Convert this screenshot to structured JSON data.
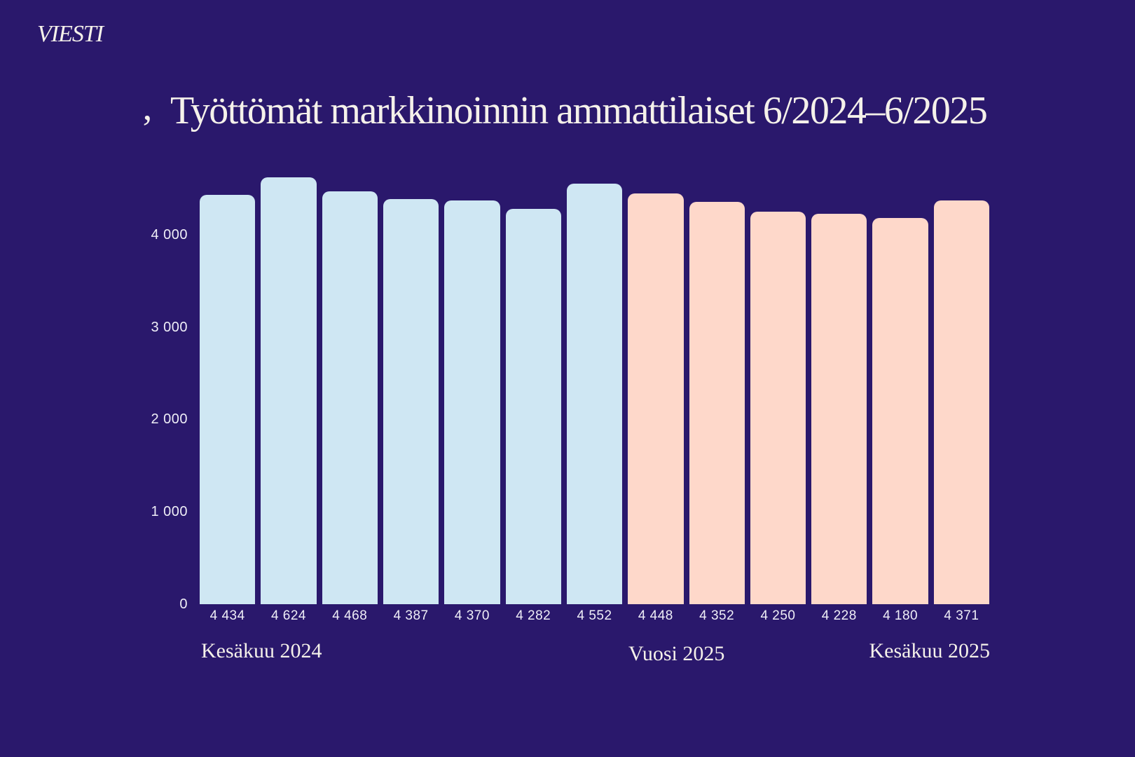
{
  "brand": {
    "logo_text": "VIESTI"
  },
  "decor": {
    "apostrophe": "’"
  },
  "title": {
    "text": "Työttömät markkinoinnin ammattilaiset 6/2024–6/2025"
  },
  "colors": {
    "background": "#2a186c",
    "bar_2024": "#cfe7f3",
    "bar_2025": "#fed8ca",
    "serif_text": "#f5f1ea",
    "sans_text": "#efeef7"
  },
  "y_axis": {
    "ticks": [
      {
        "label": "0",
        "value": 0
      },
      {
        "label": "1 000",
        "value": 1000
      },
      {
        "label": "2 000",
        "value": 2000
      },
      {
        "label": "3 000",
        "value": 3000
      },
      {
        "label": "4 000",
        "value": 4000
      }
    ]
  },
  "bars": [
    {
      "label": "4 434",
      "value": 4434,
      "series": "2024"
    },
    {
      "label": "4 624",
      "value": 4624,
      "series": "2024"
    },
    {
      "label": "4 468",
      "value": 4468,
      "series": "2024"
    },
    {
      "label": "4 387",
      "value": 4387,
      "series": "2024"
    },
    {
      "label": "4 370",
      "value": 4370,
      "series": "2024"
    },
    {
      "label": "4 282",
      "value": 4282,
      "series": "2024"
    },
    {
      "label": "4 552",
      "value": 4552,
      "series": "2024"
    },
    {
      "label": "4 448",
      "value": 4448,
      "series": "2025"
    },
    {
      "label": "4 352",
      "value": 4352,
      "series": "2025"
    },
    {
      "label": "4 250",
      "value": 4250,
      "series": "2025"
    },
    {
      "label": "4 228",
      "value": 4228,
      "series": "2025"
    },
    {
      "label": "4 180",
      "value": 4180,
      "series": "2025"
    },
    {
      "label": "4 371",
      "value": 4371,
      "series": "2025"
    }
  ],
  "annotations": {
    "left": "Kesäkuu 2024",
    "middle": "Vuosi 2025",
    "right": "Kesäkuu 2025"
  },
  "chart_data": {
    "type": "bar",
    "title": "Työttömät markkinoinnin ammattilaiset 6/2024–6/2025",
    "xlabel": "",
    "ylabel": "",
    "ylim": [
      0,
      4700
    ],
    "y_ticks": [
      0,
      1000,
      2000,
      3000,
      4000
    ],
    "gridlines": false,
    "legend": false,
    "bar_style": "rounded-top",
    "series": [
      {
        "name": "2024",
        "color": "#cfe7f3",
        "values": [
          4434,
          4624,
          4468,
          4387,
          4370,
          4282,
          4552
        ]
      },
      {
        "name": "2025",
        "color": "#fed8ca",
        "values": [
          4448,
          4352,
          4250,
          4228,
          4180,
          4371
        ]
      }
    ],
    "data_labels": [
      "4 434",
      "4 624",
      "4 468",
      "4 387",
      "4 370",
      "4 282",
      "4 552",
      "4 448",
      "4 352",
      "4 250",
      "4 228",
      "4 180",
      "4 371"
    ],
    "x_annotations": [
      "Kesäkuu 2024",
      "Vuosi 2025",
      "Kesäkuu 2025"
    ]
  }
}
